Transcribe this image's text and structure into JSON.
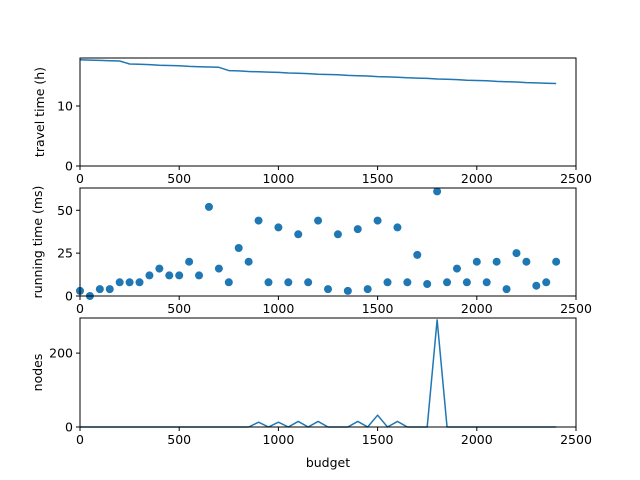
{
  "chart_data": [
    {
      "type": "line",
      "title": "",
      "xlabel": "",
      "ylabel": "travel time (h)",
      "xlim": [
        0,
        2500
      ],
      "ylim": [
        0,
        18
      ],
      "xticks": [
        0,
        500,
        1000,
        1500,
        2000,
        2500
      ],
      "yticks": [
        0,
        10
      ],
      "grid": false,
      "color": "#1f77b4",
      "series": [
        {
          "x": [
            0,
            50,
            100,
            150,
            200,
            250,
            300,
            350,
            400,
            450,
            500,
            550,
            600,
            650,
            700,
            750,
            800,
            850,
            900,
            950,
            1000,
            1050,
            1100,
            1150,
            1200,
            1250,
            1300,
            1350,
            1400,
            1450,
            1500,
            1550,
            1600,
            1650,
            1700,
            1750,
            1800,
            1850,
            1900,
            1950,
            2000,
            2050,
            2100,
            2150,
            2200,
            2250,
            2300,
            2350,
            2400
          ],
          "y": [
            17.7,
            17.65,
            17.6,
            17.55,
            17.5,
            17.0,
            16.95,
            16.9,
            16.8,
            16.75,
            16.7,
            16.6,
            16.55,
            16.5,
            16.45,
            15.9,
            15.85,
            15.75,
            15.7,
            15.65,
            15.6,
            15.5,
            15.45,
            15.4,
            15.3,
            15.25,
            15.2,
            15.1,
            15.05,
            15.0,
            14.9,
            14.85,
            14.8,
            14.7,
            14.65,
            14.6,
            14.5,
            14.45,
            14.4,
            14.3,
            14.25,
            14.2,
            14.1,
            14.05,
            14.0,
            13.9,
            13.85,
            13.8,
            13.75
          ]
        }
      ]
    },
    {
      "type": "scatter",
      "title": "",
      "xlabel": "",
      "ylabel": "running time (ms)",
      "xlim": [
        0,
        2500
      ],
      "ylim": [
        0,
        63
      ],
      "xticks": [
        0,
        500,
        1000,
        1500,
        2000,
        2500
      ],
      "yticks": [
        0,
        25,
        50
      ],
      "grid": false,
      "color": "#1f77b4",
      "series": [
        {
          "x": [
            0,
            50,
            100,
            150,
            200,
            250,
            300,
            350,
            400,
            450,
            500,
            550,
            600,
            650,
            700,
            750,
            800,
            850,
            900,
            950,
            1000,
            1050,
            1100,
            1150,
            1200,
            1250,
            1300,
            1350,
            1400,
            1450,
            1500,
            1550,
            1600,
            1650,
            1700,
            1750,
            1800,
            1850,
            1900,
            1950,
            2000,
            2050,
            2100,
            2150,
            2200,
            2250,
            2300,
            2350,
            2400
          ],
          "y": [
            3,
            0,
            4,
            4,
            8,
            8,
            8,
            12,
            16,
            12,
            12,
            20,
            12,
            52,
            16,
            8,
            28,
            20,
            44,
            8,
            40,
            8,
            36,
            8,
            44,
            4,
            36,
            3,
            39,
            4,
            44,
            8,
            40,
            8,
            24,
            7,
            61,
            8,
            16,
            8,
            20,
            8,
            20,
            4,
            25,
            20,
            6,
            8,
            20
          ]
        }
      ]
    },
    {
      "type": "line",
      "title": "",
      "xlabel": "budget",
      "ylabel": "nodes",
      "xlim": [
        0,
        2500
      ],
      "ylim": [
        0,
        295
      ],
      "xticks": [
        0,
        500,
        1000,
        1500,
        2000,
        2500
      ],
      "yticks": [
        0,
        200
      ],
      "grid": false,
      "color": "#1f77b4",
      "series": [
        {
          "x": [
            0,
            50,
            100,
            150,
            200,
            250,
            300,
            350,
            400,
            450,
            500,
            550,
            600,
            650,
            700,
            750,
            800,
            850,
            900,
            950,
            1000,
            1050,
            1100,
            1150,
            1200,
            1250,
            1300,
            1350,
            1400,
            1450,
            1500,
            1550,
            1600,
            1650,
            1700,
            1750,
            1800,
            1850,
            1900,
            1950,
            2000,
            2050,
            2100,
            2150,
            2200,
            2250,
            2300,
            2350,
            2400
          ],
          "y": [
            0,
            0,
            0,
            0,
            0,
            0,
            0,
            0,
            0,
            0,
            0,
            0,
            0,
            0,
            0,
            0,
            0,
            0,
            13,
            0,
            13,
            0,
            15,
            0,
            15,
            0,
            0,
            0,
            15,
            0,
            32,
            0,
            15,
            0,
            0,
            0,
            290,
            0,
            0,
            0,
            0,
            0,
            0,
            0,
            0,
            0,
            0,
            0,
            0
          ]
        }
      ]
    }
  ]
}
